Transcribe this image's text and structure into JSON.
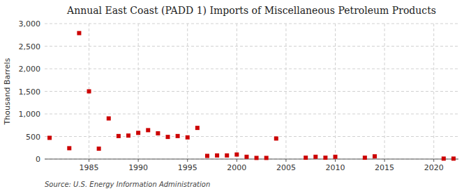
{
  "chart_data": {
    "type": "scatter",
    "title": "Annual East Coast (PADD 1) Imports of Miscellaneous Petroleum Products",
    "y_label": "Thousand Barrels",
    "annotation": "Source: U.S. Energy Information Administration",
    "x": [
      1981,
      1983,
      1984,
      1985,
      1986,
      1987,
      1988,
      1989,
      1990,
      1991,
      1992,
      1993,
      1994,
      1995,
      1996,
      1997,
      1998,
      1999,
      2000,
      2001,
      2002,
      2003,
      2004,
      2007,
      2008,
      2009,
      2010,
      2013,
      2014,
      2021,
      2022
    ],
    "values": [
      470,
      240,
      2790,
      1500,
      230,
      900,
      510,
      520,
      580,
      640,
      570,
      490,
      510,
      480,
      690,
      70,
      80,
      80,
      100,
      50,
      25,
      25,
      455,
      30,
      50,
      30,
      50,
      30,
      60,
      10,
      10
    ],
    "color": "#cc0000",
    "marker": "square",
    "xlim": [
      1980.5,
      2022.5
    ],
    "xticks": [
      1985,
      1990,
      1995,
      2000,
      2005,
      2010,
      2015,
      2020
    ],
    "ylim": [
      0,
      3000
    ],
    "yticks": [
      0,
      500,
      {
        "value": 1000,
        "label": "1,000"
      },
      {
        "value": 1500,
        "label": "1,500"
      },
      {
        "value": 2000,
        "label": "2,000"
      },
      {
        "value": 2500,
        "label": "2,500"
      },
      {
        "value": 3000,
        "label": "3,000"
      }
    ],
    "grid": true
  }
}
